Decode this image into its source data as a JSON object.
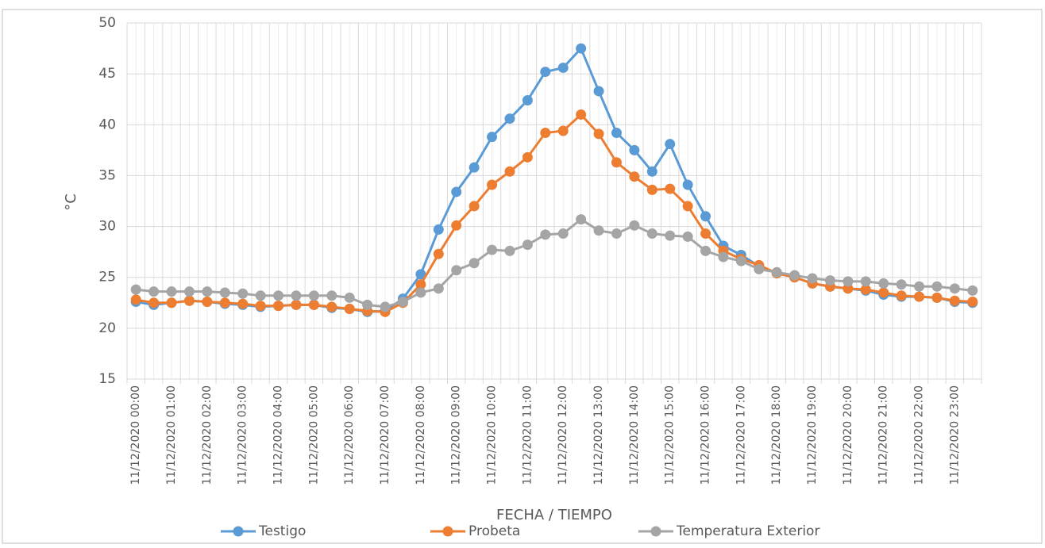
{
  "chart_data": {
    "type": "line",
    "x_label": "FECHA / TIEMPO",
    "y_label": "°C",
    "categories": [
      "11/12/2020 00:00",
      null,
      "11/12/2020 01:00",
      null,
      "11/12/2020 02:00",
      null,
      "11/12/2020 03:00",
      null,
      "11/12/2020 04:00",
      null,
      "11/12/2020 05:00",
      null,
      "11/12/2020 06:00",
      null,
      "11/12/2020 07:00",
      null,
      "11/12/2020 08:00",
      null,
      "11/12/2020 09:00",
      null,
      "11/12/2020 10:00",
      null,
      "11/12/2020 11:00",
      null,
      "11/12/2020 12:00",
      null,
      "11/12/2020 13:00",
      null,
      "11/12/2020 14:00",
      null,
      "11/12/2020 15:00",
      null,
      "11/12/2020 16:00",
      null,
      "11/12/2020 17:00",
      null,
      "11/12/2020 18:00",
      null,
      "11/12/2020 19:00",
      null,
      "11/12/2020 20:00",
      null,
      "11/12/2020 21:00",
      null,
      "11/12/2020 22:00",
      null,
      "11/12/2020 23:00",
      null
    ],
    "series": [
      {
        "name": "Testigo",
        "color": "#5b9bd5",
        "values": [
          22.6,
          22.3,
          22.5,
          22.7,
          22.6,
          22.4,
          22.3,
          22.1,
          22.2,
          22.3,
          22.3,
          22.0,
          21.9,
          21.6,
          21.7,
          22.9,
          25.3,
          29.7,
          33.4,
          35.8,
          38.8,
          40.6,
          42.4,
          45.2,
          45.6,
          47.5,
          43.3,
          39.2,
          37.5,
          35.4,
          38.1,
          34.1,
          31.0,
          28.1,
          27.2,
          26.1,
          25.4,
          25.0,
          24.4,
          24.1,
          23.9,
          23.7,
          23.3,
          23.1,
          23.1,
          23.0,
          22.6,
          22.5
        ]
      },
      {
        "name": "Probeta",
        "color": "#ed7d31",
        "values": [
          22.8,
          22.5,
          22.5,
          22.7,
          22.6,
          22.5,
          22.4,
          22.2,
          22.2,
          22.3,
          22.3,
          22.1,
          21.9,
          21.7,
          21.6,
          22.5,
          24.3,
          27.3,
          30.1,
          32.0,
          34.1,
          35.4,
          36.8,
          39.2,
          39.4,
          41.0,
          39.1,
          36.3,
          34.9,
          33.6,
          33.7,
          32.0,
          29.3,
          27.6,
          26.8,
          26.2,
          25.4,
          25.0,
          24.4,
          24.1,
          23.9,
          23.8,
          23.5,
          23.2,
          23.1,
          23.0,
          22.7,
          22.6
        ]
      },
      {
        "name": "Temperatura Exterior",
        "color": "#a5a5a5",
        "values": [
          23.8,
          23.6,
          23.6,
          23.6,
          23.6,
          23.5,
          23.4,
          23.2,
          23.2,
          23.2,
          23.2,
          23.2,
          23.0,
          22.3,
          22.1,
          22.6,
          23.5,
          23.9,
          25.7,
          26.4,
          27.7,
          27.6,
          28.2,
          29.2,
          29.3,
          30.7,
          29.6,
          29.3,
          30.1,
          29.3,
          29.1,
          29.0,
          27.6,
          27.0,
          26.6,
          25.8,
          25.5,
          25.2,
          24.9,
          24.7,
          24.6,
          24.6,
          24.4,
          24.3,
          24.1,
          24.1,
          23.9,
          23.7
        ]
      }
    ],
    "ylim": [
      15,
      50
    ],
    "yticks": [
      15,
      20,
      25,
      30,
      35,
      40,
      45,
      50
    ],
    "grid": true,
    "legend": "bottom"
  }
}
